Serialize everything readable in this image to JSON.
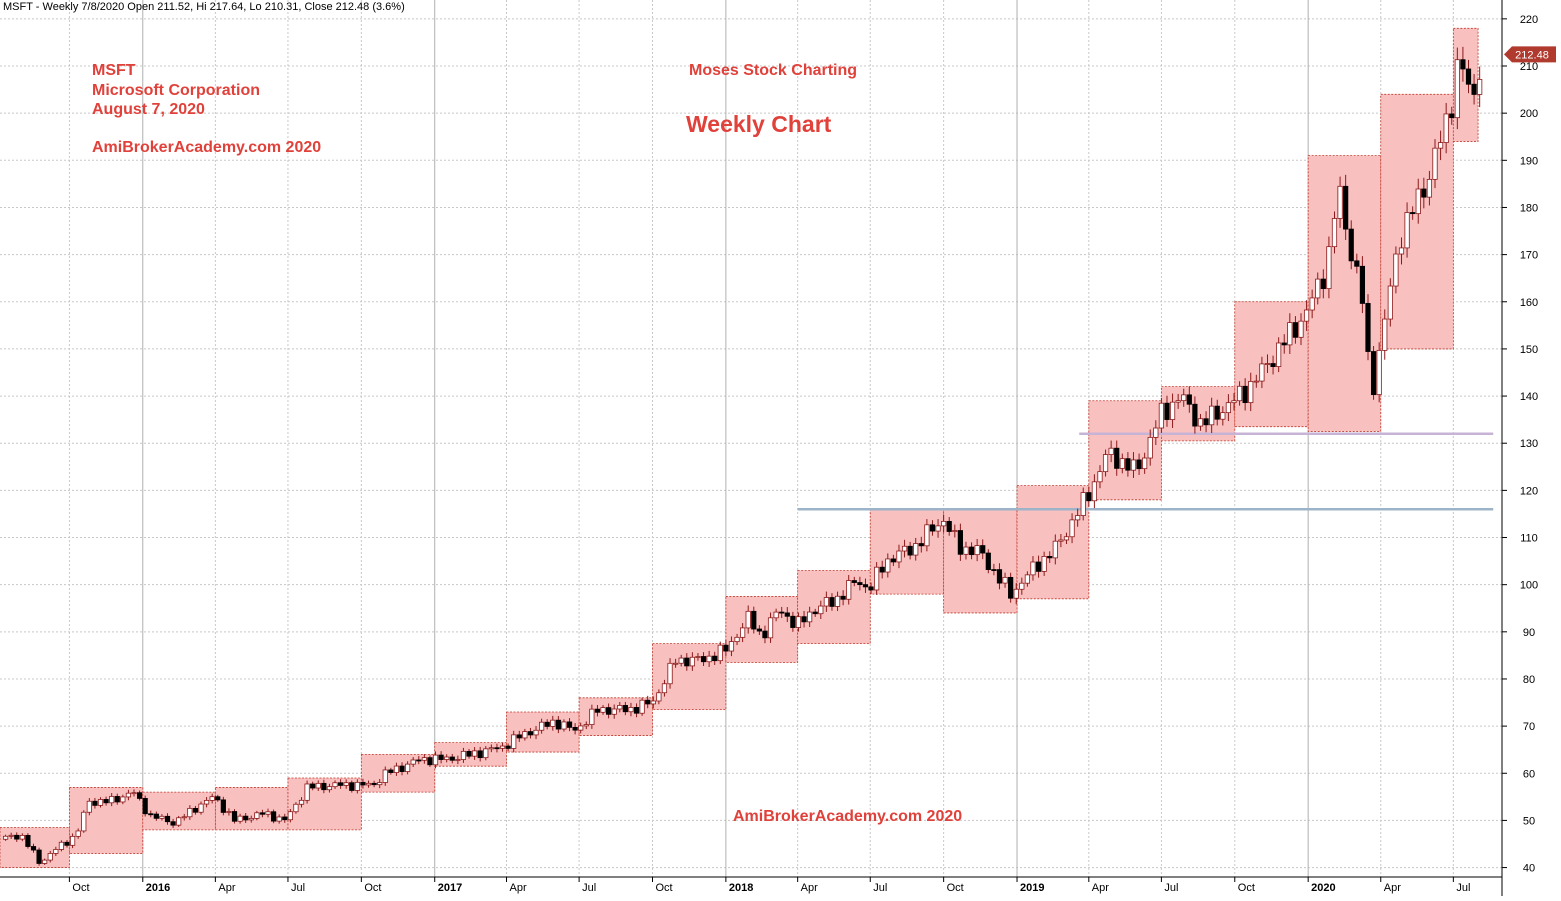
{
  "header": {
    "info_line": "MSFT - Weekly 7/8/2020 Open 211.52, Hi 217.64, Lo 210.31, Close 212.48 (3.6%)"
  },
  "annotations": {
    "ticker": "MSFT",
    "company": "Microsoft Corporation",
    "date": "August 7, 2020",
    "site_top": "AmiBrokerAcademy.com  2020",
    "brand": "Moses Stock Charting",
    "chart_title": "Weekly Chart",
    "site_bottom": "AmiBrokerAcademy.com  2020"
  },
  "colors": {
    "box_fill": "#f9c0c0",
    "box_border": "#c0392b",
    "up_candle": "#ffffff",
    "down_candle": "#000000",
    "candle_outline": "#8b1a1a",
    "price_tag": "#b03a2e",
    "annotation_text": "#e0413a",
    "support_line_1": "#9db4c8",
    "support_line_2": "#c7b3d6",
    "grid": "#c8c8c8"
  },
  "chart_data": {
    "type": "candlestick",
    "symbol": "MSFT",
    "interval": "weekly",
    "ylim": [
      38,
      224
    ],
    "y_ticks": [
      40,
      50,
      60,
      70,
      80,
      90,
      100,
      110,
      120,
      130,
      140,
      150,
      160,
      170,
      180,
      190,
      200,
      210,
      220
    ],
    "x_range": [
      "2015-07-06",
      "2020-08-31"
    ],
    "x_ticks": [
      {
        "label": "Oct",
        "date": "2015-10-01",
        "bold": false
      },
      {
        "label": "2016",
        "date": "2016-01-01",
        "bold": true
      },
      {
        "label": "Apr",
        "date": "2016-04-01",
        "bold": false
      },
      {
        "label": "Jul",
        "date": "2016-07-01",
        "bold": false
      },
      {
        "label": "Oct",
        "date": "2016-10-01",
        "bold": false
      },
      {
        "label": "2017",
        "date": "2017-01-01",
        "bold": true
      },
      {
        "label": "Apr",
        "date": "2017-04-01",
        "bold": false
      },
      {
        "label": "Jul",
        "date": "2017-07-01",
        "bold": false
      },
      {
        "label": "Oct",
        "date": "2017-10-01",
        "bold": false
      },
      {
        "label": "2018",
        "date": "2018-01-01",
        "bold": true
      },
      {
        "label": "Apr",
        "date": "2018-04-01",
        "bold": false
      },
      {
        "label": "Jul",
        "date": "2018-07-01",
        "bold": false
      },
      {
        "label": "Oct",
        "date": "2018-10-01",
        "bold": false
      },
      {
        "label": "2019",
        "date": "2019-01-01",
        "bold": true
      },
      {
        "label": "Apr",
        "date": "2019-04-01",
        "bold": false
      },
      {
        "label": "Jul",
        "date": "2019-07-01",
        "bold": false
      },
      {
        "label": "Oct",
        "date": "2019-10-01",
        "bold": false
      },
      {
        "label": "2020",
        "date": "2020-01-01",
        "bold": true
      },
      {
        "label": "Apr",
        "date": "2020-04-01",
        "bold": false
      },
      {
        "label": "Jul",
        "date": "2020-07-01",
        "bold": false
      }
    ],
    "last_close_label": "212.48",
    "last_close": 212.48,
    "quarter_ranges": [
      {
        "start": "2015-07-06",
        "end": "2015-10-01",
        "low": 40.0,
        "high": 48.5
      },
      {
        "start": "2015-10-01",
        "end": "2016-01-01",
        "low": 43.0,
        "high": 57.0
      },
      {
        "start": "2016-01-01",
        "end": "2016-04-01",
        "low": 48.0,
        "high": 56.0
      },
      {
        "start": "2016-04-01",
        "end": "2016-07-01",
        "low": 48.0,
        "high": 57.0
      },
      {
        "start": "2016-07-01",
        "end": "2016-10-01",
        "low": 48.0,
        "high": 59.0
      },
      {
        "start": "2016-10-01",
        "end": "2017-01-01",
        "low": 56.0,
        "high": 64.0
      },
      {
        "start": "2017-01-01",
        "end": "2017-04-01",
        "low": 61.5,
        "high": 66.5
      },
      {
        "start": "2017-04-01",
        "end": "2017-07-01",
        "low": 64.5,
        "high": 73.0
      },
      {
        "start": "2017-07-01",
        "end": "2017-10-01",
        "low": 68.0,
        "high": 76.0
      },
      {
        "start": "2017-10-01",
        "end": "2018-01-01",
        "low": 73.5,
        "high": 87.5
      },
      {
        "start": "2018-01-01",
        "end": "2018-04-01",
        "low": 83.5,
        "high": 97.5
      },
      {
        "start": "2018-04-01",
        "end": "2018-07-01",
        "low": 87.5,
        "high": 103.0
      },
      {
        "start": "2018-07-01",
        "end": "2018-10-01",
        "low": 98.0,
        "high": 116.0
      },
      {
        "start": "2018-10-01",
        "end": "2019-01-01",
        "low": 94.0,
        "high": 116.0
      },
      {
        "start": "2019-01-01",
        "end": "2019-04-01",
        "low": 97.0,
        "high": 121.0
      },
      {
        "start": "2019-04-01",
        "end": "2019-07-01",
        "low": 118.0,
        "high": 139.0
      },
      {
        "start": "2019-07-01",
        "end": "2019-10-01",
        "low": 130.5,
        "high": 142.0
      },
      {
        "start": "2019-10-01",
        "end": "2020-01-01",
        "low": 133.5,
        "high": 160.0
      },
      {
        "start": "2020-01-01",
        "end": "2020-04-01",
        "low": 132.5,
        "high": 191.0
      },
      {
        "start": "2020-04-01",
        "end": "2020-07-01",
        "low": 150.0,
        "high": 204.0
      },
      {
        "start": "2020-07-01",
        "end": "2020-08-01",
        "low": 194.0,
        "high": 218.0
      }
    ],
    "support_lines": [
      {
        "value": 116,
        "from": "2018-04-01",
        "to": "2020-08-20",
        "color": "#9db4c8"
      },
      {
        "value": 132,
        "from": "2019-03-20",
        "to": "2020-08-20",
        "color": "#c7b3d6"
      }
    ],
    "price_path": [
      [
        "2015-07-06",
        46
      ],
      [
        "2015-08-01",
        47
      ],
      [
        "2015-08-25",
        41
      ],
      [
        "2015-09-15",
        44
      ],
      [
        "2015-10-10",
        47
      ],
      [
        "2015-10-25",
        54
      ],
      [
        "2015-11-20",
        54
      ],
      [
        "2015-12-20",
        56
      ],
      [
        "2016-01-10",
        51
      ],
      [
        "2016-02-10",
        49.5
      ],
      [
        "2016-03-10",
        53
      ],
      [
        "2016-03-30",
        55
      ],
      [
        "2016-04-25",
        50
      ],
      [
        "2016-06-01",
        51.5
      ],
      [
        "2016-06-28",
        50
      ],
      [
        "2016-07-25",
        57
      ],
      [
        "2016-09-01",
        57.5
      ],
      [
        "2016-10-15",
        57.5
      ],
      [
        "2016-11-01",
        60
      ],
      [
        "2016-12-15",
        63
      ],
      [
        "2017-01-15",
        63
      ],
      [
        "2017-02-15",
        64
      ],
      [
        "2017-03-25",
        65.5
      ],
      [
        "2017-04-25",
        68.5
      ],
      [
        "2017-06-01",
        71
      ],
      [
        "2017-06-25",
        69
      ],
      [
        "2017-07-25",
        73.5
      ],
      [
        "2017-09-01",
        73.5
      ],
      [
        "2017-10-01",
        75
      ],
      [
        "2017-10-30",
        84
      ],
      [
        "2017-12-01",
        84
      ],
      [
        "2017-12-31",
        86
      ],
      [
        "2018-01-30",
        93
      ],
      [
        "2018-02-15",
        89
      ],
      [
        "2018-03-10",
        95
      ],
      [
        "2018-03-31",
        91
      ],
      [
        "2018-04-15",
        94
      ],
      [
        "2018-05-20",
        97
      ],
      [
        "2018-06-15",
        101
      ],
      [
        "2018-06-30",
        99
      ],
      [
        "2018-07-20",
        105
      ],
      [
        "2018-08-25",
        108
      ],
      [
        "2018-09-30",
        114
      ],
      [
        "2018-10-20",
        108
      ],
      [
        "2018-11-15",
        107
      ],
      [
        "2018-12-24",
        98
      ],
      [
        "2019-01-25",
        104
      ],
      [
        "2019-02-20",
        108
      ],
      [
        "2019-03-31",
        119
      ],
      [
        "2019-04-25",
        128
      ],
      [
        "2019-05-31",
        124
      ],
      [
        "2019-06-30",
        136
      ],
      [
        "2019-07-25",
        140
      ],
      [
        "2019-08-20",
        134
      ],
      [
        "2019-09-30",
        139
      ],
      [
        "2019-10-25",
        143
      ],
      [
        "2019-11-25",
        150
      ],
      [
        "2019-12-31",
        158
      ],
      [
        "2020-01-25",
        168
      ],
      [
        "2020-02-08",
        184
      ],
      [
        "2020-02-22",
        172
      ],
      [
        "2020-03-08",
        162
      ],
      [
        "2020-03-20",
        140
      ],
      [
        "2020-04-05",
        155
      ],
      [
        "2020-04-25",
        174
      ],
      [
        "2020-05-25",
        184
      ],
      [
        "2020-06-25",
        199
      ],
      [
        "2020-07-08",
        212
      ],
      [
        "2020-07-25",
        202
      ],
      [
        "2020-08-05",
        212.5
      ]
    ]
  }
}
